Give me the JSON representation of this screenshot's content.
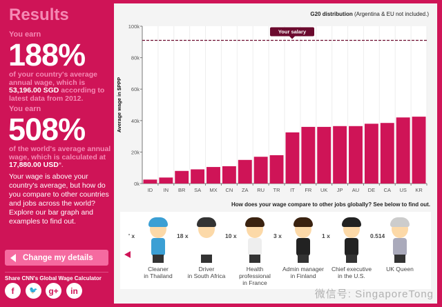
{
  "left": {
    "title": "Results",
    "earn1": "You earn",
    "pct1": "188%",
    "desc1_a": "of your country's average annual wage, which is ",
    "desc1_amount": "53,196.00 SGD",
    "desc1_b": " according to latest data from 2012.",
    "earn2": "You earn",
    "pct2": "508%",
    "desc2_a": "of the world's average annual wage, which is calculated at ",
    "desc2_amount": "17,880.00 USD",
    "desc2_b": "*.",
    "para": "Your wage is above your country's average, but how do you compare to other countries and jobs across the world? Explore our bar graph and examples to find out.",
    "change_button": "Change my details",
    "share_label": "Share CNN's Global Wage Calculator",
    "social": [
      {
        "icon": "facebook-icon",
        "glyph": "f"
      },
      {
        "icon": "twitter-icon",
        "glyph": "🐦"
      },
      {
        "icon": "google-plus-icon",
        "glyph": "g+"
      },
      {
        "icon": "linkedin-icon",
        "glyph": "in"
      }
    ]
  },
  "chart_header": {
    "bold": "G20 distribution",
    "rest": " (Argentina & EU not included.)"
  },
  "chart_data": {
    "type": "bar",
    "ylabel": "Average wage in $PPP",
    "ylim": [
      0,
      100000
    ],
    "yticks": [
      0,
      20000,
      40000,
      60000,
      80000,
      100000
    ],
    "ytick_labels": [
      "0k",
      "20k",
      "40k",
      "60k",
      "80k",
      "100k"
    ],
    "categories": [
      "ID",
      "IN",
      "BR",
      "SA",
      "MX",
      "CN",
      "ZA",
      "RU",
      "TR",
      "IT",
      "FR",
      "UK",
      "JP",
      "AU",
      "DE",
      "CA",
      "US",
      "KR"
    ],
    "values": [
      2500,
      3800,
      8000,
      9000,
      10500,
      11000,
      15000,
      17000,
      18000,
      32500,
      36000,
      36000,
      36500,
      36500,
      38000,
      38500,
      42000,
      42500
    ],
    "reference_line": {
      "label": "Your salary",
      "value": 91000
    },
    "color": "#cf1457"
  },
  "question": "How does your wage compare to other jobs globally? See below to find out.",
  "jobs": [
    {
      "mult": "' x",
      "line1": "Cleaner",
      "line2": "in Thailand",
      "hair": "#3b9fd4",
      "body": "#3b9fd4"
    },
    {
      "mult": "18 x",
      "line1": "Driver",
      "line2": "in South Africa",
      "hair": "#333",
      "body": "#fff"
    },
    {
      "mult": "10 x",
      "line1": "Health professional",
      "line2": "in France",
      "hair": "#3a2210",
      "body": "#eee"
    },
    {
      "mult": "3 x",
      "line1": "Admin manager",
      "line2": "in Finland",
      "hair": "#3a2210",
      "body": "#222"
    },
    {
      "mult": "1 x",
      "line1": "Chief executive",
      "line2": "in the U.S.",
      "hair": "#222",
      "body": "#222"
    },
    {
      "mult": "0.514",
      "line1": "UK Queen",
      "line2": "",
      "hair": "#ccc",
      "body": "#aab"
    }
  ],
  "watermark": "微信号: SingaporeTong"
}
